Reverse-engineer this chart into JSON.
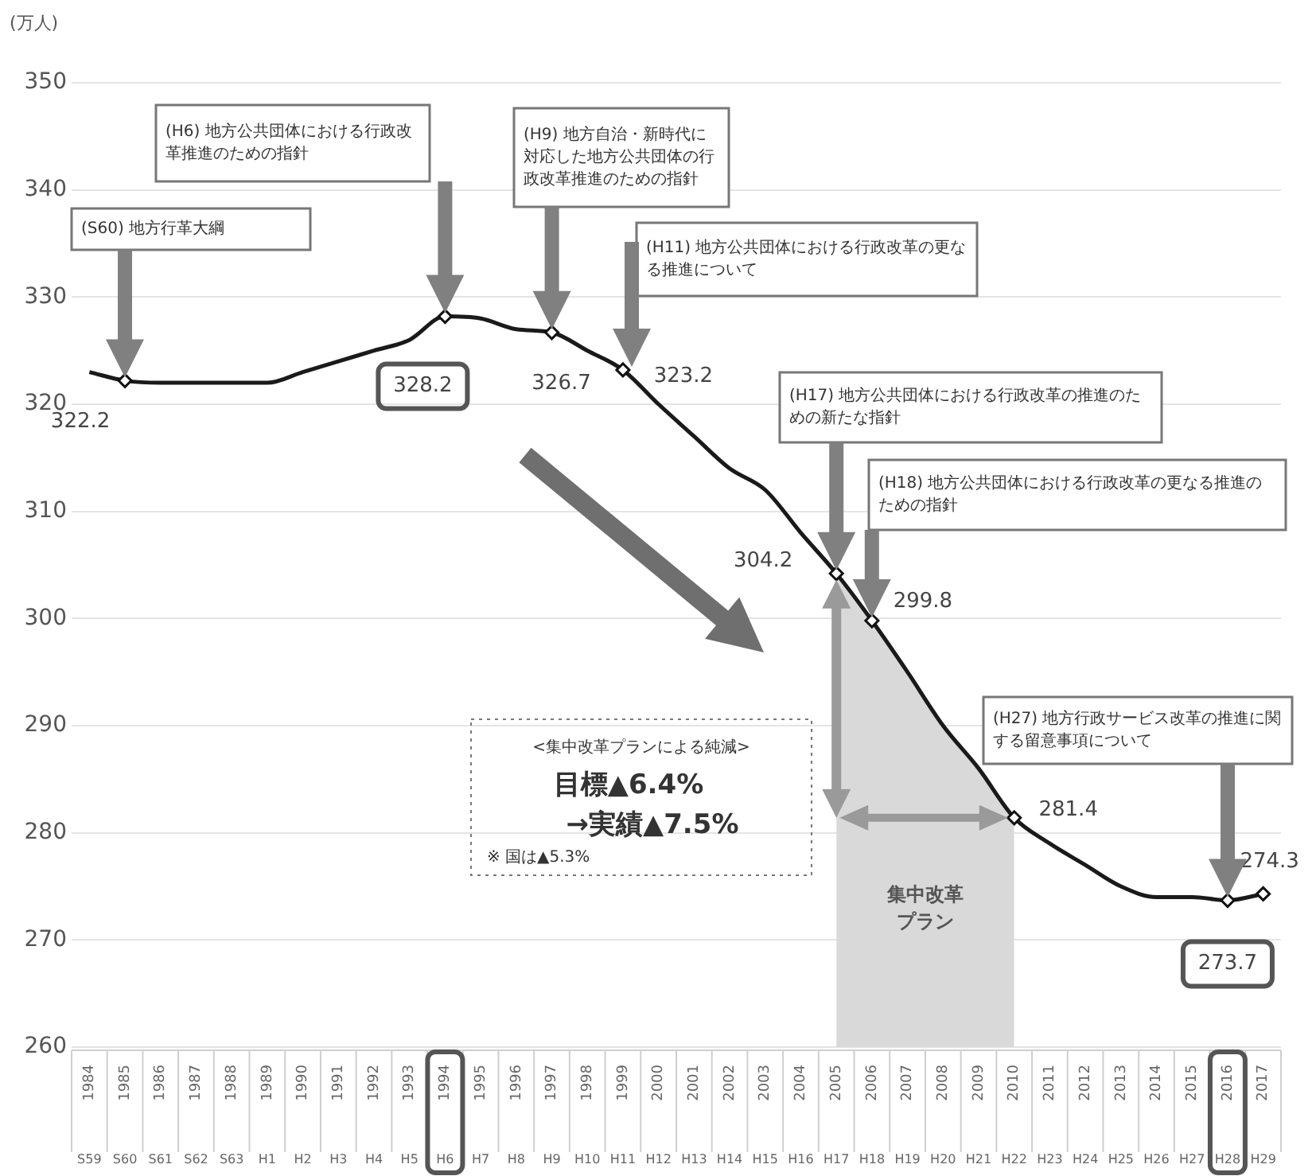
{
  "chart_data": {
    "type": "line",
    "ylabel": "(万人)",
    "categories": [
      "1984\nS59",
      "1985\nS60",
      "1986\nS61",
      "1987\nS62",
      "1988\nS63",
      "1989\nH1",
      "1990\nH2",
      "1991\nH3",
      "1992\nH4",
      "1993\nH5",
      "1994\nH6",
      "1995\nH7",
      "1996\nH8",
      "1997\nH9",
      "1998\nH10",
      "1999\nH11",
      "2000\nH12",
      "2001\nH13",
      "2002\nH14",
      "2003\nH15",
      "2004\nH16",
      "2005\nH17",
      "2006\nH18",
      "2007\nH19",
      "2008\nH20",
      "2009\nH21",
      "2010\nH22",
      "2011\nH23",
      "2012\nH24",
      "2013\nH25",
      "2014\nH26",
      "2015\nH27",
      "2016\nH28",
      "2017\nH29"
    ],
    "series": [
      {
        "type": "area",
        "color": "#d9d9d9",
        "values": [
          null,
          null,
          null,
          null,
          null,
          null,
          null,
          null,
          null,
          null,
          null,
          null,
          null,
          null,
          null,
          null,
          null,
          null,
          null,
          null,
          null,
          304.2,
          299.8,
          295,
          290,
          286,
          281.4,
          null,
          null,
          null,
          null,
          null,
          null,
          null
        ]
      },
      {
        "color": "#1a1a1a",
        "values": [
          323,
          322.2,
          322,
          322,
          322,
          322,
          323,
          324,
          325,
          326,
          328.2,
          328,
          327,
          326.7,
          325,
          323.2,
          320,
          317,
          314,
          312,
          308,
          304.2,
          299.8,
          295,
          290,
          286,
          281.4,
          279,
          277,
          275,
          274,
          274,
          273.7,
          274.3
        ],
        "value_labels": [
          null,
          "322.2",
          null,
          null,
          null,
          null,
          null,
          null,
          null,
          null,
          "328.2",
          null,
          null,
          "326.7",
          null,
          "323.2",
          null,
          null,
          null,
          null,
          null,
          "304.2",
          "299.8",
          null,
          null,
          null,
          "281.4",
          null,
          null,
          null,
          null,
          null,
          "273.7",
          "274.3"
        ]
      }
    ],
    "ylim": [
      260,
      350
    ],
    "yticks": [
      260,
      270,
      280,
      290,
      300,
      310,
      320,
      330,
      340,
      350
    ],
    "grid": "y",
    "annotations": [
      "(S60) 地方行革大綱",
      "(H6) 地方公共団体における行政改革推進のための指針",
      "(H9) 地方自治・新時代に対応した地方公共団体の行政改革推進のための指針",
      "(H11) 地方公共団体における行政改革の更なる推進について",
      "(H17) 地方公共団体における行政改革の推進のための新たな指針",
      "(H18) 地方公共団体における行政改革の更なる推進のための指針",
      "(H27) 地方行政サービス改革の推進に関する留意事項について",
      "<集中改革プランによる純減>",
      "目標▲6.4%",
      "→実績▲7.5%",
      "※ 国は▲5.3%",
      "集中改革プラン"
    ]
  }
}
